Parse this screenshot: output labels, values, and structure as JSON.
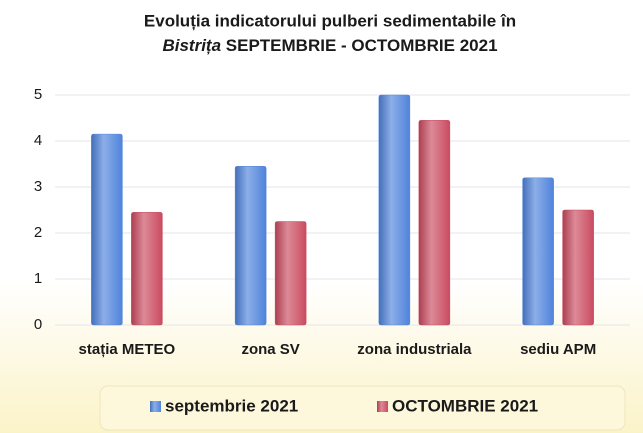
{
  "chart_data": {
    "type": "bar",
    "title": [
      "Evoluția indicatorului pulberi sedimentabile în",
      "Bistrița",
      "SEPTEMBRIE - OCTOMBRIE 2021"
    ],
    "categories": [
      "stația METEO",
      "zona SV",
      "zona industriala",
      "sediu APM"
    ],
    "series": [
      {
        "name": "septembrie 2021",
        "color": "#4f83db",
        "values": [
          4.15,
          3.45,
          5.0,
          3.2
        ]
      },
      {
        "name": "OCTOMBRIE 2021",
        "color": "#c94a60",
        "values": [
          2.45,
          2.25,
          4.45,
          2.5
        ]
      }
    ],
    "ylim": [
      0,
      5
    ],
    "yticks": [
      0,
      1,
      2,
      3,
      4,
      5
    ],
    "grid": true,
    "legend": "bottom"
  }
}
